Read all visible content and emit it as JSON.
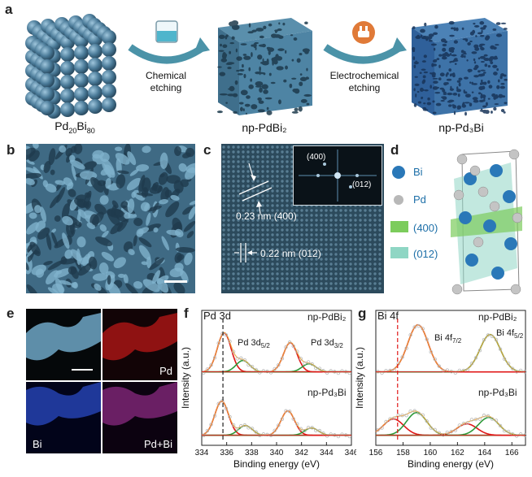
{
  "panel_labels": {
    "a": "a",
    "b": "b",
    "c": "c",
    "d": "d",
    "e": "e",
    "f": "f",
    "g": "g"
  },
  "panel_a": {
    "sample1": "Pd",
    "sample1_sub1": "20",
    "sample1_mid": "Bi",
    "sample1_sub2": "80",
    "sample2": "np-PdBi₂",
    "sample3": "np-Pd₃Bi",
    "step1_line1": "Chemical",
    "step1_line2": "etching",
    "step2_line1": "Electrochemical",
    "step2_line2": "etching",
    "colors": {
      "cube": "#4a7a98",
      "cube2": "#3e73a8",
      "arrow": "#4b93a8",
      "beaker_liquid": "#4fb5cc",
      "gear": "#e07a38"
    }
  },
  "panel_c": {
    "annot1": "0.23 nm (400)",
    "annot2": "0.22 nm (012)",
    "fft_spot1": "(400)",
    "fft_spot2": "(012)"
  },
  "panel_d": {
    "legend": [
      "Bi",
      "Pd",
      "(400)",
      "(012)"
    ],
    "colors": {
      "bi": "#2a78b8",
      "pd": "#b8b8b8",
      "plane400": "#7ccc5c",
      "plane012": "#8fd6c4",
      "label": "#1d6fa8"
    }
  },
  "panel_e": {
    "labels": [
      "Pd",
      "Bi",
      "Pd+Bi"
    ],
    "colors": {
      "sem": "#6fa6c6",
      "pd": "#c41818",
      "bi": "#2c4fd0",
      "merge": "#8a2a80"
    }
  },
  "chart_data": [
    {
      "type": "line",
      "title": "Pd 3d",
      "xlabel": "Binding energy (eV)",
      "ylabel": "Intensity (a.u.)",
      "xlim": [
        334,
        346
      ],
      "xticks": [
        334,
        336,
        338,
        340,
        342,
        344,
        346
      ],
      "reversed_x": false,
      "series": [
        {
          "name": "np-PdBi₂",
          "peaks_eV": [
            335.8,
            337.3,
            341.1,
            342.6
          ]
        },
        {
          "name": "np-Pd₃Bi",
          "peaks_eV": [
            335.6,
            337.5,
            340.9,
            342.8
          ]
        }
      ],
      "annotations": [
        "Pd 3d5/2",
        "Pd 3d3/2"
      ],
      "dashed_line_eV": 335.7
    },
    {
      "type": "line",
      "title": "Bi 4f",
      "xlabel": "Binding energy (eV)",
      "ylabel": "Intensity (a.u.)",
      "xlim": [
        156,
        167
      ],
      "xticks": [
        156,
        158,
        160,
        162,
        164,
        166
      ],
      "series": [
        {
          "name": "np-PdBi₂",
          "peaks_eV": [
            159.1,
            164.4
          ]
        },
        {
          "name": "np-Pd₃Bi",
          "peaks_eV": [
            157.3,
            159.0,
            162.7,
            164.3
          ]
        }
      ],
      "annotations": [
        "Bi 4f7/2",
        "Bi 4f5/2"
      ],
      "dashed_line_eV": 157.6
    }
  ],
  "panel_f": {
    "title": "Pd 3d",
    "series_top": "np-PdBi₂",
    "series_bottom": "np-Pd₃Bi",
    "peak1": "Pd 3d",
    "peak1_sub": "5/2",
    "peak2": "Pd 3d",
    "peak2_sub": "3/2",
    "xlabel": "Binding energy (eV)",
    "ylabel": "Intensity (a.u.)",
    "ticks": [
      "334",
      "336",
      "338",
      "340",
      "342",
      "344",
      "346"
    ]
  },
  "panel_g": {
    "title": "Bi 4f",
    "series_top": "np-PdBi₂",
    "series_bottom": "np-Pd₃Bi",
    "peak1": "Bi 4f",
    "peak1_sub": "7/2",
    "peak2": "Bi 4f",
    "peak2_sub": "5/2",
    "xlabel": "Binding energy (eV)",
    "ylabel": "Intensity (a.u.)",
    "ticks": [
      "156",
      "158",
      "160",
      "162",
      "164",
      "166"
    ]
  },
  "colors": {
    "fit_red": "#e01818",
    "fit_green": "#2e9a3a",
    "fit_orange": "#e8a23a",
    "data_points": "#b8b8b8"
  }
}
